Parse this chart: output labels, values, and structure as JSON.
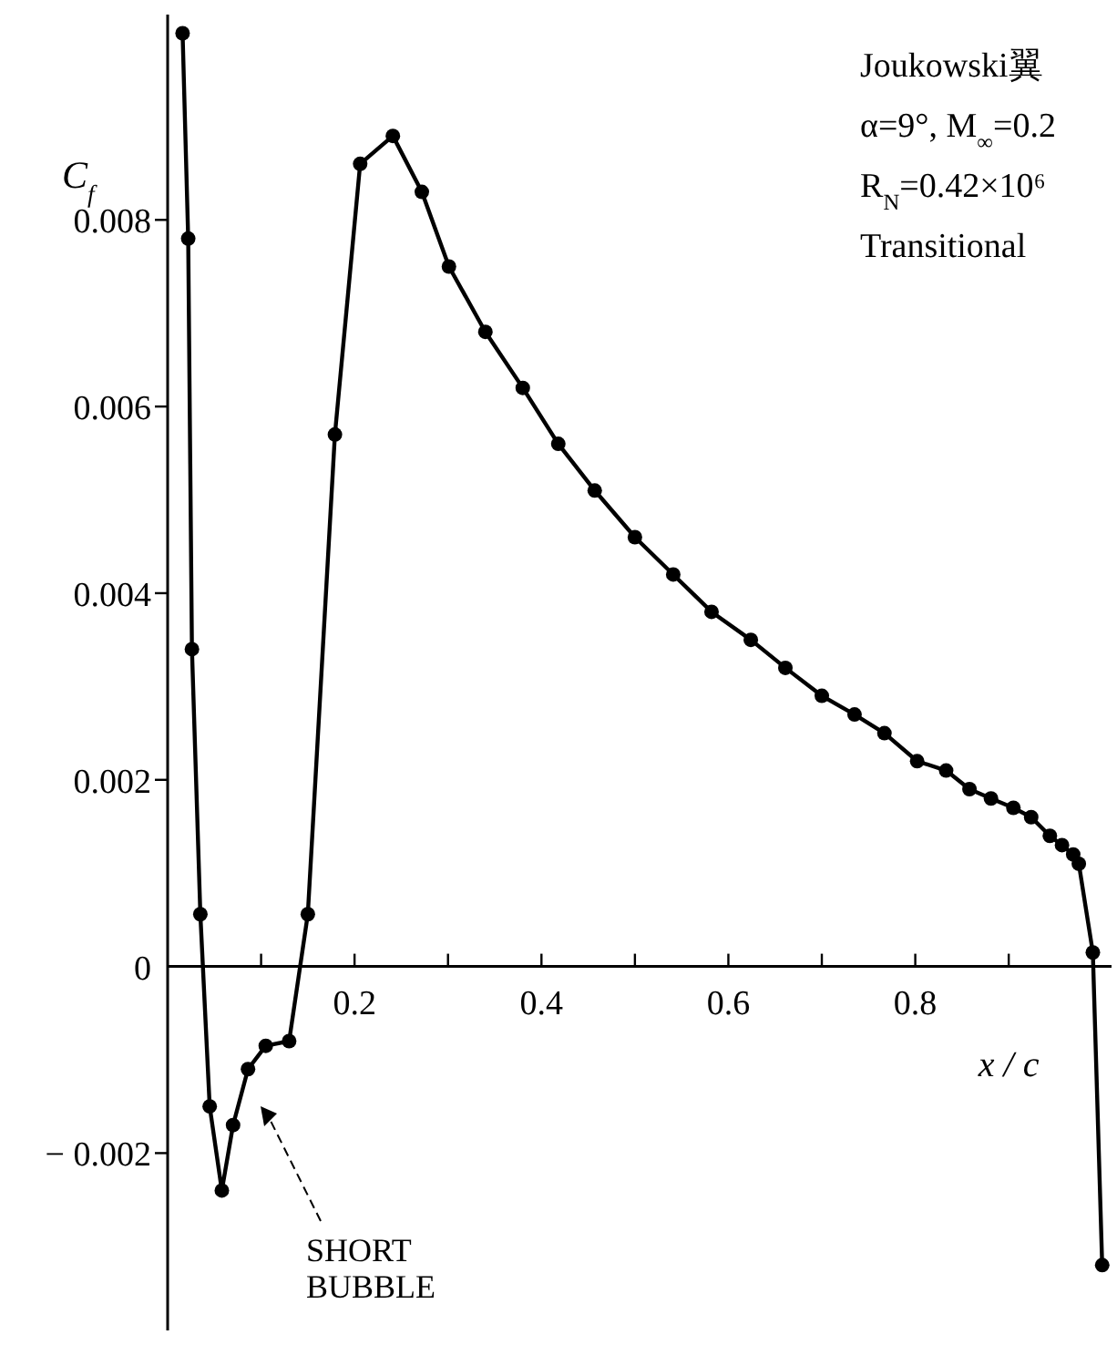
{
  "chart_data": {
    "type": "line",
    "ylabel": "C$_{f}$",
    "xlabel": "x / c",
    "x": [
      0.016,
      0.022,
      0.026,
      0.035,
      0.045,
      0.058,
      0.07,
      0.086,
      0.105,
      0.13,
      0.15,
      0.179,
      0.206,
      0.241,
      0.272,
      0.301,
      0.34,
      0.38,
      0.418,
      0.457,
      0.5,
      0.541,
      0.582,
      0.624,
      0.661,
      0.7,
      0.735,
      0.767,
      0.802,
      0.833,
      0.858,
      0.881,
      0.905,
      0.924,
      0.944,
      0.957,
      0.969,
      0.975,
      0.99,
      1.0
    ],
    "series": [
      {
        "color": "#000000",
        "values": [
          0.01,
          0.0078,
          0.0034,
          0.00056,
          -0.0015,
          -0.0024,
          -0.0017,
          -0.0011,
          -0.00085,
          -0.0008,
          0.00056,
          0.0057,
          0.0086,
          0.0089,
          0.0083,
          0.0075,
          0.0068,
          0.0062,
          0.0056,
          0.0051,
          0.0046,
          0.0042,
          0.0038,
          0.0035,
          0.0032,
          0.0029,
          0.0027,
          0.0025,
          0.0022,
          0.0021,
          0.0019,
          0.0018,
          0.0017,
          0.0016,
          0.0014,
          0.0013,
          0.0012,
          0.0011,
          0.00015,
          -0.0032
        ]
      }
    ],
    "xlim": [
      0,
      1.01
    ],
    "ylim": [
      -0.0039,
      0.0102
    ],
    "xticks": [
      {
        "value": 0.1,
        "label": null
      },
      0.2,
      {
        "value": 0.3,
        "label": null
      },
      0.4,
      {
        "value": 0.5,
        "label": null
      },
      0.6,
      {
        "value": 0.7,
        "label": null
      },
      0.8,
      {
        "value": 0.9,
        "label": null
      }
    ],
    "yticks": [
      {
        "value": -0.002,
        "label": "− 0.002"
      },
      0,
      0.002,
      0.004,
      0.006,
      0.008
    ],
    "marker": "circle",
    "line_style": "solid",
    "grid": false,
    "annotations": [
      "Joukowski翼",
      "α=9°, M$_{∞}$=0.2",
      "R$_{N}$=0.42×10⁶",
      "Transitional",
      "SHORT\nBUBBLE"
    ]
  }
}
